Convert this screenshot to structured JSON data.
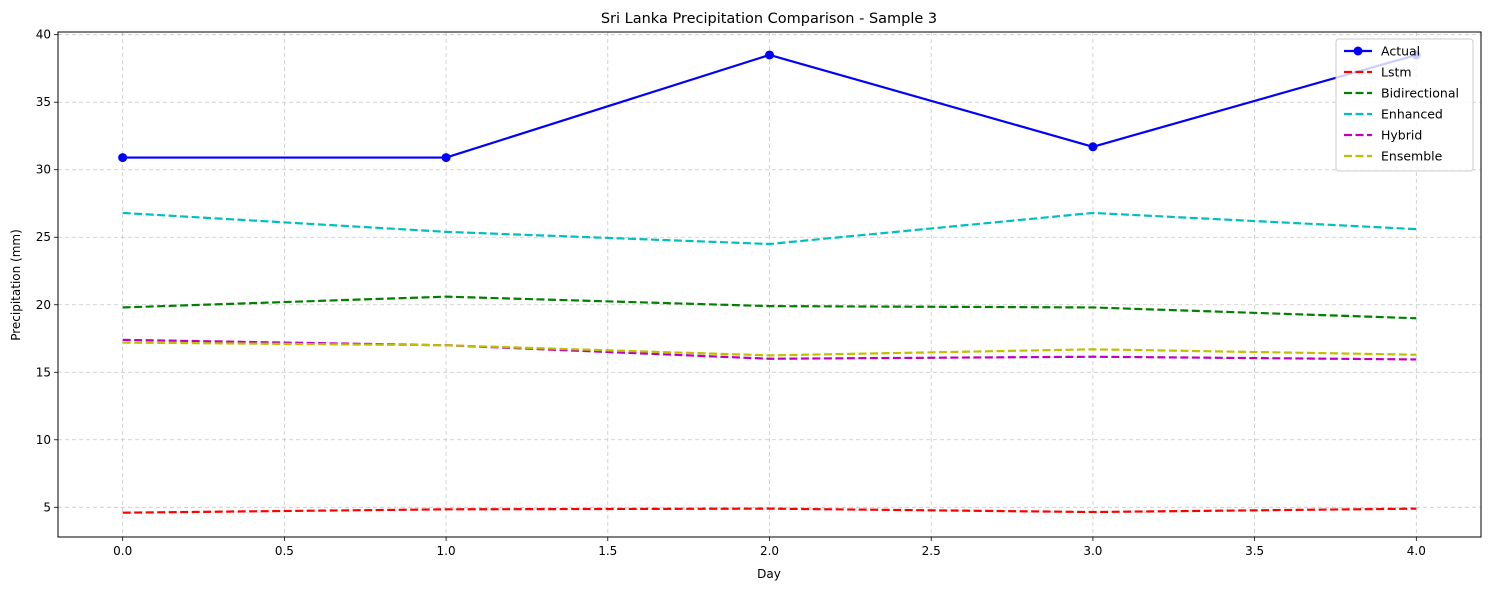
{
  "chart_data": {
    "type": "line",
    "title": "Sri Lanka Precipitation Comparison - Sample 3",
    "xlabel": "Day",
    "ylabel": "Precipitation (mm)",
    "xlim": [
      -0.2,
      4.2
    ],
    "ylim": [
      2.8,
      40.2
    ],
    "xticks": [
      0.0,
      0.5,
      1.0,
      1.5,
      2.0,
      2.5,
      3.0,
      3.5,
      4.0
    ],
    "xtick_labels": [
      "0.0",
      "0.5",
      "1.0",
      "1.5",
      "2.0",
      "2.5",
      "3.0",
      "3.5",
      "4.0"
    ],
    "yticks": [
      5,
      10,
      15,
      20,
      25,
      30,
      35,
      40
    ],
    "ytick_labels": [
      "5",
      "10",
      "15",
      "20",
      "25",
      "30",
      "35",
      "40"
    ],
    "grid": true,
    "legend_position": "top-right",
    "x": [
      0,
      1,
      2,
      3,
      4
    ],
    "series": [
      {
        "name": "Actual",
        "color": "#0000ff",
        "style": "solid",
        "marker": "circle",
        "values": [
          30.9,
          30.9,
          38.5,
          31.7,
          38.5
        ]
      },
      {
        "name": "Lstm",
        "color": "#ff0000",
        "style": "dashed",
        "marker": "none",
        "values": [
          4.6,
          4.85,
          4.9,
          4.65,
          4.9
        ]
      },
      {
        "name": "Bidirectional",
        "color": "#008000",
        "style": "dashed",
        "marker": "none",
        "values": [
          19.8,
          20.6,
          19.9,
          19.8,
          19.0
        ]
      },
      {
        "name": "Enhanced",
        "color": "#00bfbf",
        "style": "dashed",
        "marker": "none",
        "values": [
          26.8,
          25.4,
          24.5,
          26.8,
          25.6
        ]
      },
      {
        "name": "Hybrid",
        "color": "#bf00bf",
        "style": "dashed",
        "marker": "none",
        "values": [
          17.4,
          17.0,
          16.0,
          16.15,
          15.95
        ]
      },
      {
        "name": "Ensemble",
        "color": "#bfbf00",
        "style": "dashed",
        "marker": "none",
        "values": [
          17.2,
          17.0,
          16.25,
          16.7,
          16.3
        ]
      }
    ]
  }
}
